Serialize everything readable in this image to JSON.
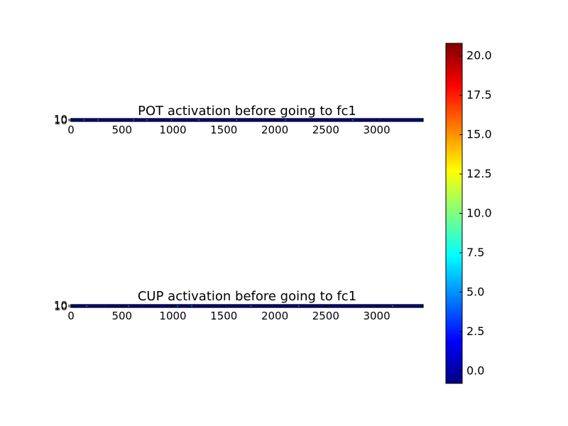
{
  "figure": {
    "background": "#ffffff"
  },
  "chart_data": [
    {
      "type": "heatmap",
      "title": "POT activation before going to fc1",
      "xlabel": "",
      "ylabel": "",
      "xlim": [
        0,
        3456
      ],
      "xticks": [
        0,
        500,
        1000,
        1500,
        2000,
        2500,
        3000
      ],
      "yticks_label": "10",
      "rows": 2,
      "cmap": "jet",
      "values_note": "",
      "grid": false,
      "band_sparkles": [
        {
          "x": 120,
          "v": 4.2
        },
        {
          "x": 180,
          "v": 3.1
        },
        {
          "x": 260,
          "v": 5.0
        },
        {
          "x": 520,
          "v": 2.8
        },
        {
          "x": 610,
          "v": 3.6
        },
        {
          "x": 740,
          "v": 4.5
        },
        {
          "x": 980,
          "v": 3.3
        },
        {
          "x": 1130,
          "v": 2.9
        },
        {
          "x": 1250,
          "v": 4.1
        },
        {
          "x": 1620,
          "v": 3.4
        },
        {
          "x": 1880,
          "v": 2.7
        },
        {
          "x": 2100,
          "v": 3.9
        },
        {
          "x": 2480,
          "v": 3.0
        },
        {
          "x": 2760,
          "v": 4.4
        },
        {
          "x": 3020,
          "v": 3.2
        },
        {
          "x": 3310,
          "v": 2.6
        }
      ]
    },
    {
      "type": "heatmap",
      "title": "CUP activation before going to fc1",
      "xlabel": "",
      "ylabel": "",
      "xlim": [
        0,
        3456
      ],
      "xticks": [
        0,
        500,
        1000,
        1500,
        2000,
        2500,
        3000
      ],
      "yticks_label": "10",
      "rows": 2,
      "cmap": "jet",
      "grid": false,
      "band_sparkles": [
        {
          "x": 150,
          "v": 3.8
        },
        {
          "x": 330,
          "v": 2.9
        },
        {
          "x": 560,
          "v": 4.6
        },
        {
          "x": 700,
          "v": 3.0
        },
        {
          "x": 890,
          "v": 2.5
        },
        {
          "x": 1040,
          "v": 3.7
        },
        {
          "x": 1180,
          "v": 4.0
        },
        {
          "x": 1450,
          "v": 2.8
        },
        {
          "x": 1760,
          "v": 3.5
        },
        {
          "x": 1990,
          "v": 2.6
        },
        {
          "x": 2230,
          "v": 4.2
        },
        {
          "x": 2590,
          "v": 3.1
        },
        {
          "x": 2870,
          "v": 2.9
        },
        {
          "x": 3150,
          "v": 3.6
        },
        {
          "x": 3380,
          "v": 2.7
        }
      ]
    }
  ],
  "colorbar": {
    "vmin": -0.8,
    "vmax": 20.8,
    "ticks": [
      0.0,
      2.5,
      5.0,
      7.5,
      10.0,
      12.5,
      15.0,
      17.5,
      20.0
    ],
    "tick_labels": [
      "0.0",
      "2.5",
      "5.0",
      "7.5",
      "10.0",
      "12.5",
      "15.0",
      "17.5",
      "20.0"
    ],
    "cmap": "jet",
    "cmap_stops": [
      "#00007f",
      "#0000ff",
      "#007fff",
      "#00ffff",
      "#7fff7f",
      "#ffff00",
      "#ff7f00",
      "#ff0000",
      "#7f0000"
    ]
  },
  "colors": {
    "band_dark": "#00008f",
    "axis": "#000000"
  }
}
